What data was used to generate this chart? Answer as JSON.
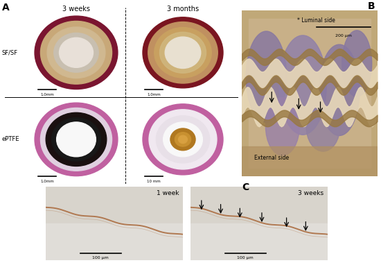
{
  "fig_width": 5.5,
  "fig_height": 3.79,
  "dpi": 100,
  "bg_color": "#ffffff",
  "label_A": "A",
  "label_B": "B",
  "label_C": "C",
  "col_header_3weeks": "3 weeks",
  "col_header_3months": "3 months",
  "row_label_SFSF": "SF/SF",
  "row_label_ePTFE": "ePTFE",
  "panel_C_label_left": "1 week",
  "panel_C_label_right": "3 weeks",
  "luminal_side": "* Luminal side",
  "external_side": "External side",
  "scalebar_200": "200 μm",
  "scalebar_100": "100 μm",
  "scalebar_1mm_a": "1.0mm",
  "scalebar_10mm": "10 mm",
  "sfsf_3w_bg": "#e8e0d8",
  "sfsf_3w_outer": "#7a1530",
  "sfsf_3w_mid": "#c8a878",
  "sfsf_3w_inner_bg": "#d8ccc0",
  "sfsf_3m_bg": "#e8e4d8",
  "sfsf_3m_outer": "#7a1520",
  "sfsf_3m_mid": "#c09060",
  "sfsf_3m_inner_bg": "#e8e0d0",
  "eptfe_3w_bg": "#f0eef0",
  "eptfe_3w_outer": "#c060a0",
  "eptfe_3w_tube": "#1a1010",
  "eptfe_3w_inner_bg": "#f8f8f8",
  "eptfe_3m_bg": "#f0eef0",
  "eptfe_3m_outer": "#c060a0",
  "eptfe_3m_mid_bg": "#f0f0f0",
  "eptfe_3m_core": "#b07820",
  "panelB_bg": "#c8b898",
  "panelB_tissue": "#9080a0",
  "panelB_brown": "#987040",
  "panelC_bg": "#ddd8d0",
  "panelC_line": "#b07850",
  "arrow_color": "#000000",
  "text_color": "#000000",
  "divider_color": "#000000",
  "scalebar_color": "#000000"
}
